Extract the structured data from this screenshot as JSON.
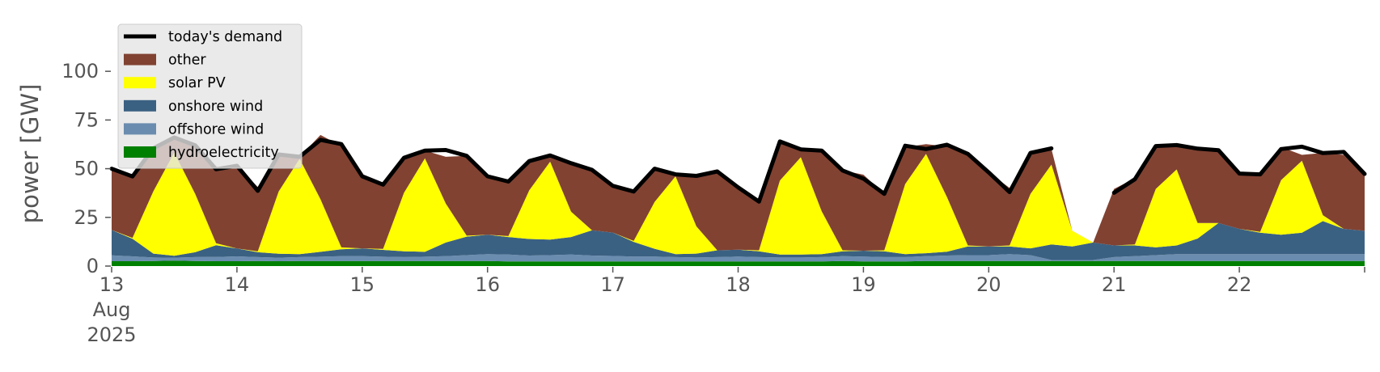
{
  "chart_data": {
    "type": "area",
    "title": "",
    "xlabel": "",
    "ylabel": "power [GW]",
    "ylim": [
      0,
      120
    ],
    "xlim": [
      "2025-08-13T00:00",
      "2025-08-23T00:00"
    ],
    "y_ticks": [
      0,
      25,
      50,
      75,
      100
    ],
    "y_tick_labels": [
      "0",
      "25",
      "50",
      "75",
      "100"
    ],
    "x_ticks": [
      {
        "x": "2025-08-13",
        "lines": [
          "13",
          "Aug",
          "2025"
        ]
      },
      {
        "x": "2025-08-14",
        "lines": [
          "14"
        ]
      },
      {
        "x": "2025-08-15",
        "lines": [
          "15"
        ]
      },
      {
        "x": "2025-08-16",
        "lines": [
          "16"
        ]
      },
      {
        "x": "2025-08-17",
        "lines": [
          "17"
        ]
      },
      {
        "x": "2025-08-18",
        "lines": [
          "18"
        ]
      },
      {
        "x": "2025-08-19",
        "lines": [
          "19"
        ]
      },
      {
        "x": "2025-08-20",
        "lines": [
          "20"
        ]
      },
      {
        "x": "2025-08-21",
        "lines": [
          "21"
        ]
      },
      {
        "x": "2025-08-22",
        "lines": [
          "22"
        ]
      }
    ],
    "grid": false,
    "stacked": true,
    "legend_position": "top-left",
    "x": [
      "2025-08-13T00:00",
      "2025-08-13T04:00",
      "2025-08-13T08:00",
      "2025-08-13T12:00",
      "2025-08-13T16:00",
      "2025-08-13T20:00",
      "2025-08-14T00:00",
      "2025-08-14T04:00",
      "2025-08-14T08:00",
      "2025-08-14T12:00",
      "2025-08-14T16:00",
      "2025-08-14T20:00",
      "2025-08-15T00:00",
      "2025-08-15T04:00",
      "2025-08-15T08:00",
      "2025-08-15T12:00",
      "2025-08-15T16:00",
      "2025-08-15T20:00",
      "2025-08-16T00:00",
      "2025-08-16T04:00",
      "2025-08-16T08:00",
      "2025-08-16T12:00",
      "2025-08-16T16:00",
      "2025-08-16T20:00",
      "2025-08-17T00:00",
      "2025-08-17T04:00",
      "2025-08-17T08:00",
      "2025-08-17T12:00",
      "2025-08-17T16:00",
      "2025-08-17T20:00",
      "2025-08-18T00:00",
      "2025-08-18T04:00",
      "2025-08-18T08:00",
      "2025-08-18T12:00",
      "2025-08-18T16:00",
      "2025-08-18T20:00",
      "2025-08-19T00:00",
      "2025-08-19T04:00",
      "2025-08-19T08:00",
      "2025-08-19T12:00",
      "2025-08-19T16:00",
      "2025-08-19T20:00",
      "2025-08-20T00:00",
      "2025-08-20T04:00",
      "2025-08-20T08:00",
      "2025-08-20T12:00",
      "2025-08-20T16:00",
      "2025-08-20T20:00",
      "2025-08-21T00:00",
      "2025-08-21T04:00",
      "2025-08-21T08:00",
      "2025-08-21T12:00",
      "2025-08-21T16:00",
      "2025-08-21T20:00",
      "2025-08-22T00:00",
      "2025-08-22T04:00",
      "2025-08-22T08:00",
      "2025-08-22T12:00",
      "2025-08-22T16:00",
      "2025-08-22T20:00",
      "2025-08-23T00:00"
    ],
    "series": [
      {
        "name": "hydroelectricity",
        "color": "#008000",
        "values": [
          2.5,
          2.5,
          2.6,
          2.8,
          2.6,
          2.5,
          2.5,
          2.6,
          2.5,
          2.6,
          2.6,
          2.6,
          2.6,
          2.6,
          2.6,
          2.6,
          2.6,
          2.6,
          2.6,
          2.4,
          2.4,
          2.4,
          2.4,
          2.4,
          2.4,
          2.4,
          2.4,
          2.4,
          2.4,
          2.4,
          2.4,
          2.4,
          2.4,
          2.4,
          2.4,
          2.6,
          2.4,
          2.4,
          2.4,
          2.6,
          2.6,
          2.6,
          2.6,
          2.6,
          2.6,
          2.6,
          2.6,
          2.6,
          2.6,
          2.6,
          2.6,
          2.6,
          2.6,
          2.6,
          2.6,
          2.6,
          2.6,
          2.6,
          2.6,
          2.6,
          2.6
        ]
      },
      {
        "name": "offshore wind",
        "color": "#6a8caf",
        "values": [
          3.0,
          2.5,
          1.8,
          1.5,
          2.0,
          2.2,
          2.5,
          2.0,
          1.8,
          2.0,
          2.2,
          2.5,
          2.5,
          2.2,
          2.0,
          2.2,
          2.5,
          3.0,
          3.5,
          3.5,
          3.0,
          3.2,
          3.5,
          3.0,
          2.8,
          2.5,
          2.5,
          2.2,
          2.0,
          2.2,
          2.5,
          2.2,
          2.0,
          2.0,
          2.2,
          2.5,
          2.5,
          2.2,
          2.2,
          2.5,
          2.8,
          3.0,
          3.0,
          3.5,
          3.0,
          0.5,
          0.5,
          0.5,
          2.0,
          2.5,
          3.0,
          3.5,
          3.5,
          3.5,
          3.5,
          3.5,
          3.5,
          3.5,
          3.5,
          3.5,
          3.5
        ]
      },
      {
        "name": "onshore wind",
        "color": "#3b6182",
        "values": [
          13.0,
          9.0,
          2.0,
          1.0,
          2.5,
          6.0,
          4.0,
          2.5,
          2.0,
          1.5,
          2.5,
          3.5,
          4.0,
          3.5,
          3.0,
          2.5,
          7.0,
          9.5,
          10.0,
          9.0,
          8.5,
          8.0,
          9.0,
          13.0,
          12.0,
          7.5,
          4.0,
          1.5,
          2.0,
          3.5,
          3.5,
          3.0,
          1.5,
          1.5,
          1.5,
          2.5,
          3.0,
          3.0,
          1.5,
          1.5,
          2.0,
          4.5,
          4.5,
          4.0,
          3.5,
          8.0,
          7.0,
          9.0,
          6.0,
          5.5,
          4.0,
          4.5,
          8.0,
          16.0,
          13.0,
          11.0,
          10.0,
          11.0,
          17.0,
          13.0,
          12.0
        ]
      },
      {
        "name": "solar PV",
        "color": "#ffff00",
        "values": [
          0.0,
          0.5,
          32.0,
          53.0,
          30.0,
          1.0,
          0.0,
          0.5,
          32.0,
          49.0,
          27.0,
          1.0,
          0.0,
          0.5,
          30.0,
          48.0,
          20.0,
          0.5,
          0.0,
          0.5,
          25.0,
          40.0,
          13.0,
          0.0,
          0.0,
          0.5,
          24.0,
          40.0,
          14.0,
          0.0,
          0.0,
          0.5,
          38.0,
          50.0,
          22.0,
          0.5,
          0.0,
          0.5,
          36.0,
          51.0,
          28.0,
          0.5,
          0.0,
          0.5,
          28.0,
          41.0,
          8.0,
          0.0,
          0.0,
          0.5,
          30.0,
          39.0,
          8.0,
          0.0,
          0.0,
          0.5,
          28.0,
          37.0,
          3.0,
          0.0,
          0.0
        ]
      },
      {
        "name": "other",
        "color": "#814232",
        "values": [
          31.5,
          32.0,
          22.0,
          7.0,
          25.0,
          38.0,
          42.5,
          33.0,
          19.0,
          1.0,
          33.0,
          52.0,
          37.0,
          33.0,
          18.0,
          4.0,
          24.0,
          41.0,
          30.0,
          28.0,
          15.0,
          3.0,
          25.0,
          31.0,
          24.0,
          25.0,
          17.0,
          1.0,
          25.0,
          40.0,
          32.0,
          25.0,
          20.0,
          5.0,
          31.0,
          41.0,
          39.0,
          29.0,
          19.0,
          5.0,
          26.0,
          47.5,
          38.0,
          29.5,
          22.0,
          8.0,
          0.0,
          0.0,
          29.0,
          34.0,
          22.0,
          13.0,
          38.0,
          37.0,
          28.0,
          30.0,
          17.0,
          3.0,
          32.0,
          38.0,
          28.0
        ]
      }
    ],
    "demand": {
      "name": "today's demand",
      "color": "#000000",
      "values": [
        50.0,
        46.0,
        60.5,
        66.0,
        62.0,
        49.7,
        51.5,
        38.6,
        57.3,
        56.1,
        64.8,
        62.6,
        46.1,
        41.8,
        55.6,
        59.3,
        59.6,
        56.6,
        46.1,
        43.4,
        53.9,
        56.8,
        52.8,
        49.4,
        41.2,
        38.3,
        50.0,
        47.1,
        46.3,
        48.6,
        40.4,
        33.1,
        64.0,
        59.9,
        59.3,
        49.1,
        44.9,
        37.1,
        61.8,
        60.1,
        62.3,
        57.6,
        48.1,
        38.0,
        58.1,
        60.4,
        null,
        null,
        37.6,
        44.6,
        61.6,
        62.1,
        60.3,
        59.5,
        47.5,
        47.1,
        60.1,
        61.3,
        58.0,
        58.6,
        47.3
      ]
    }
  }
}
